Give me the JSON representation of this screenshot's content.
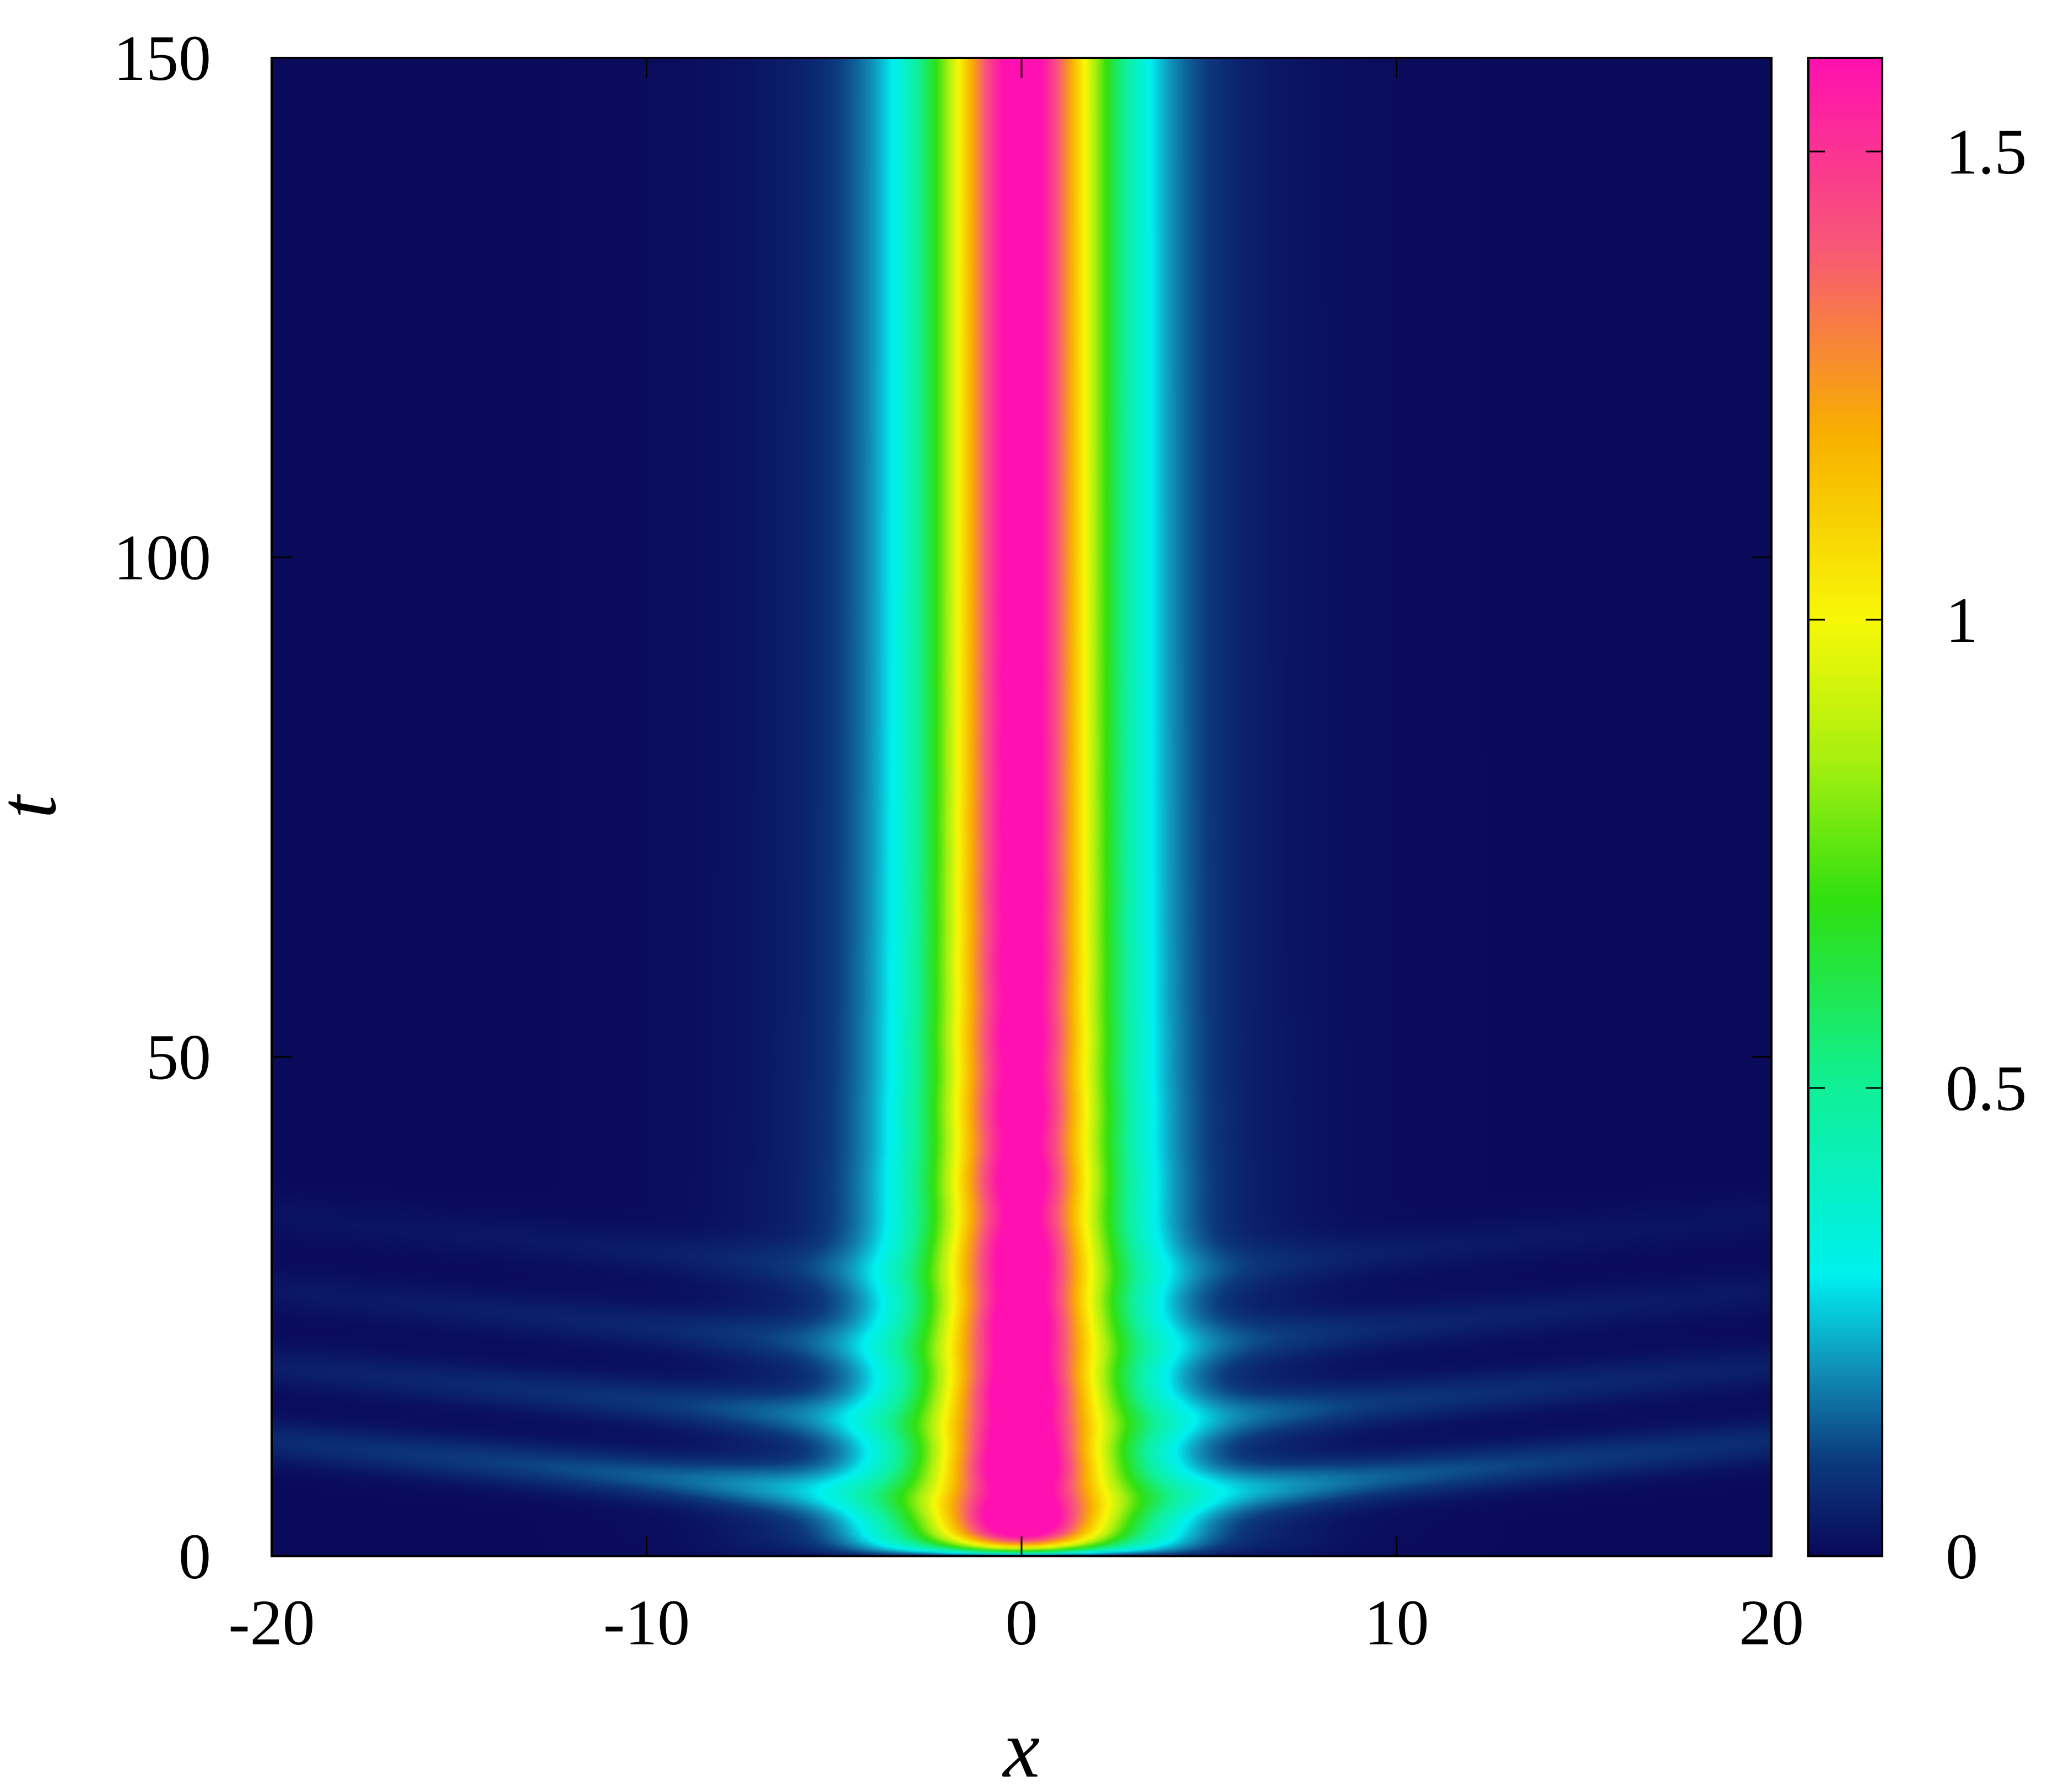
{
  "chart_data": {
    "type": "heatmap",
    "title": "",
    "xlabel": "x",
    "ylabel": "t",
    "xlim": [
      -20,
      20
    ],
    "ylim": [
      0,
      150
    ],
    "x_ticks": [
      -20,
      -10,
      0,
      10,
      20
    ],
    "x_tick_labels": [
      "-20",
      "-10",
      "0",
      "10",
      "20"
    ],
    "y_ticks": [
      0,
      50,
      100,
      150
    ],
    "y_tick_labels": [
      "0",
      "50",
      "100",
      "150"
    ],
    "colorbar": {
      "range": [
        0,
        1.6
      ],
      "ticks": [
        0,
        0.5,
        1,
        1.5
      ],
      "tick_labels": [
        "0",
        "0.5",
        "1",
        "1.5"
      ],
      "colormap": [
        {
          "value": 0.0,
          "color": "#0a0a5a"
        },
        {
          "value": 0.1,
          "color": "#0c3a7c"
        },
        {
          "value": 0.2,
          "color": "#1290b8"
        },
        {
          "value": 0.3,
          "color": "#00f0f0"
        },
        {
          "value": 0.5,
          "color": "#10f098"
        },
        {
          "value": 0.7,
          "color": "#30e010"
        },
        {
          "value": 0.85,
          "color": "#a8f010"
        },
        {
          "value": 1.0,
          "color": "#f8f808"
        },
        {
          "value": 1.2,
          "color": "#f8b000"
        },
        {
          "value": 1.4,
          "color": "#f85878"
        },
        {
          "value": 1.6,
          "color": "#ff10b0"
        }
      ]
    },
    "field": {
      "description_of_values": "|psi(x,t)| density profile of a centered soliton with breathing at early times",
      "center_x": 0,
      "peak_steady": 1.62,
      "core_width": 2.2,
      "breathing_period": 7.2,
      "breathing_decay_time": 18,
      "radiation_peak_times": [
        4.5,
        12,
        19.5,
        27
      ]
    },
    "grid": false,
    "legend": "none"
  }
}
